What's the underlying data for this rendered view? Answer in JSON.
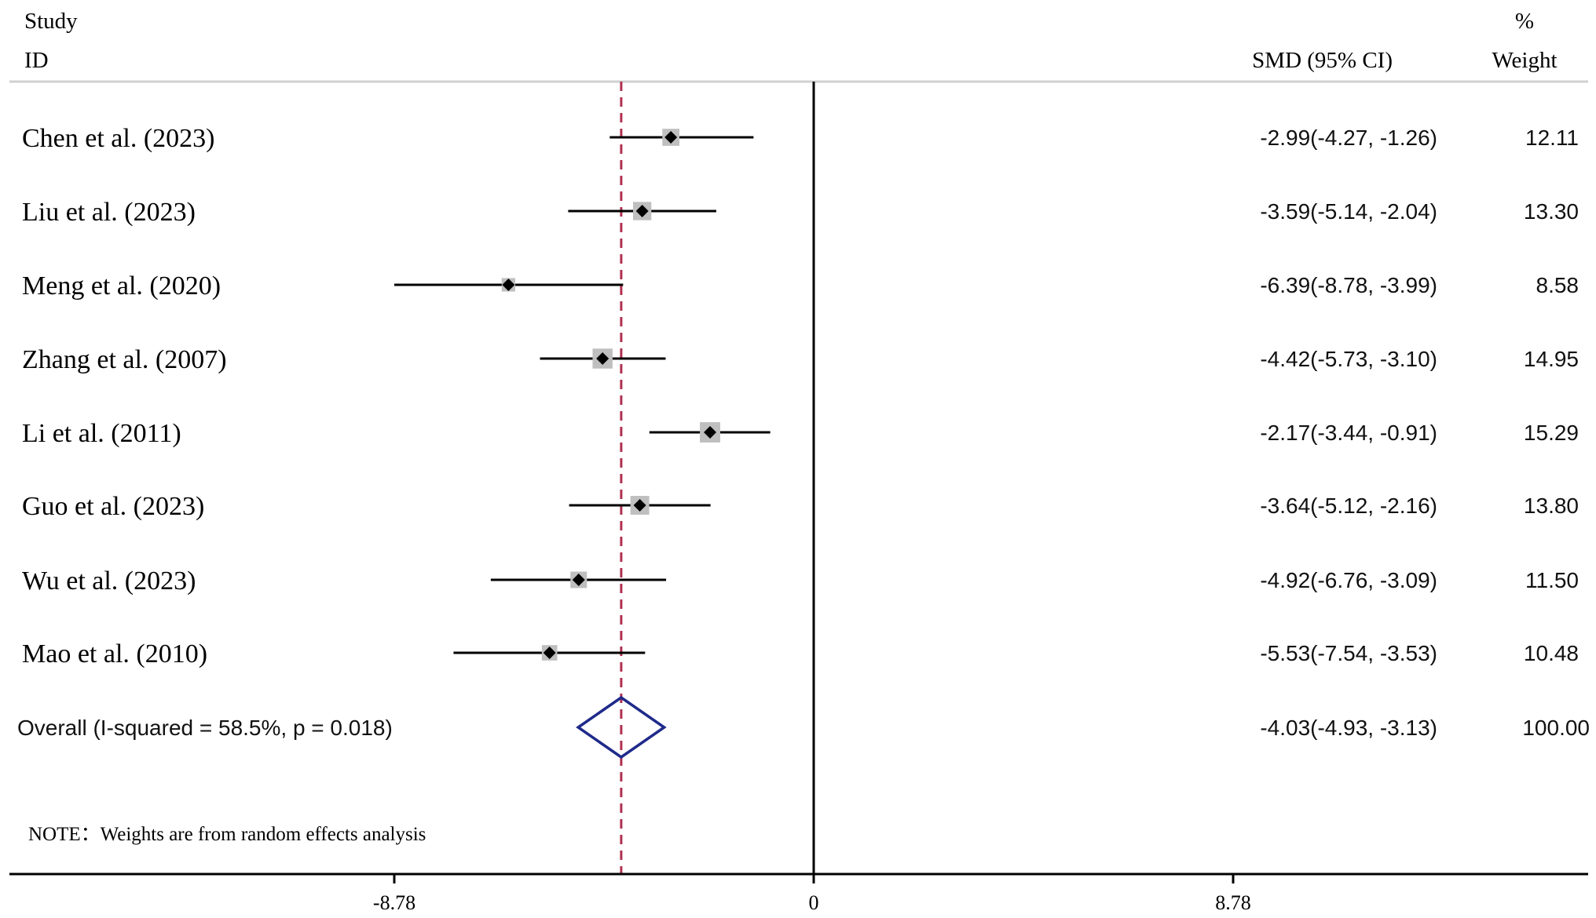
{
  "header": {
    "study_line1": "Study",
    "study_line2": "ID",
    "smd_label": "SMD (95% CI)",
    "weight_line1": "%",
    "weight_line2": "Weight"
  },
  "note": "NOTE：Weights are from random effects analysis",
  "colors": {
    "line": "#000000",
    "box": "#bfbfbf",
    "overall_diamond": "#1f2a8a",
    "reference_line": "#b03050",
    "header_rule": "#d0d0d0"
  },
  "chart_data": {
    "type": "forest",
    "measure": "SMD",
    "x_ticks": [
      -8.78,
      0,
      8.78
    ],
    "x_tick_labels": [
      "-8.78",
      "0",
      "8.78"
    ],
    "xlim": [
      -8.78,
      8.78
    ],
    "null_line": 0,
    "studies": [
      {
        "id": "Chen et al. (2023)",
        "est": -2.99,
        "lo": -4.27,
        "hi": -1.26,
        "ci_text": "-2.99(-4.27, -1.26)",
        "weight": 12.11,
        "weight_text": "12.11"
      },
      {
        "id": "Liu et al. (2023)",
        "est": -3.59,
        "lo": -5.14,
        "hi": -2.04,
        "ci_text": "-3.59(-5.14, -2.04)",
        "weight": 13.3,
        "weight_text": "13.30"
      },
      {
        "id": "Meng et al. (2020)",
        "est": -6.39,
        "lo": -8.78,
        "hi": -3.99,
        "ci_text": "-6.39(-8.78, -3.99)",
        "weight": 8.58,
        "weight_text": "8.58"
      },
      {
        "id": "Zhang et al. (2007)",
        "est": -4.42,
        "lo": -5.73,
        "hi": -3.1,
        "ci_text": "-4.42(-5.73, -3.10)",
        "weight": 14.95,
        "weight_text": "14.95"
      },
      {
        "id": "Li et al. (2011)",
        "est": -2.17,
        "lo": -3.44,
        "hi": -0.91,
        "ci_text": "-2.17(-3.44, -0.91)",
        "weight": 15.29,
        "weight_text": "15.29"
      },
      {
        "id": "Guo et al. (2023)",
        "est": -3.64,
        "lo": -5.12,
        "hi": -2.16,
        "ci_text": "-3.64(-5.12, -2.16)",
        "weight": 13.8,
        "weight_text": "13.80"
      },
      {
        "id": "Wu et al. (2023)",
        "est": -4.92,
        "lo": -6.76,
        "hi": -3.09,
        "ci_text": "-4.92(-6.76, -3.09)",
        "weight": 11.5,
        "weight_text": "11.50"
      },
      {
        "id": "Mao et al. (2010)",
        "est": -5.53,
        "lo": -7.54,
        "hi": -3.53,
        "ci_text": "-5.53(-7.54, -3.53)",
        "weight": 10.48,
        "weight_text": "10.48"
      }
    ],
    "overall": {
      "label": "Overall  (I-squared = 58.5%, p = 0.018)",
      "est": -4.03,
      "lo": -4.93,
      "hi": -3.13,
      "ci_text": "-4.03(-4.93, -3.13)",
      "weight": 100.0,
      "weight_text": "100.00",
      "i_squared": 58.5,
      "p": 0.018
    }
  }
}
